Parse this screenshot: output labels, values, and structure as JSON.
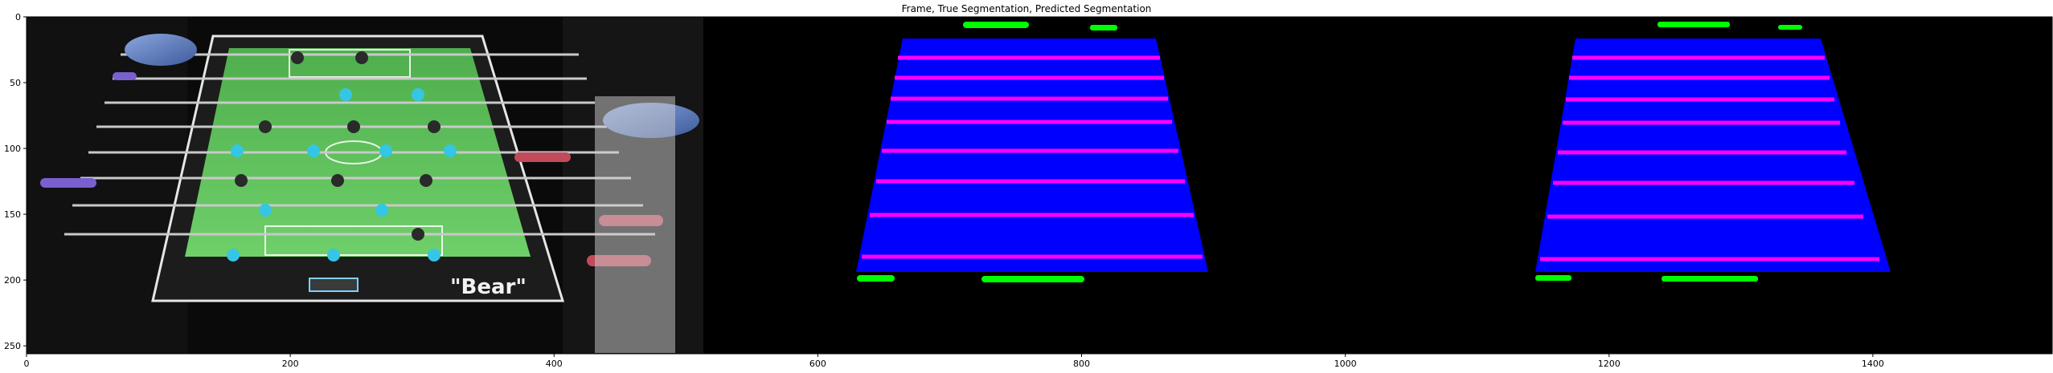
{
  "figure": {
    "title": "Frame, True Segmentation, Predicted Segmentation"
  },
  "axes": {
    "x_ticks": [
      "0",
      "200",
      "400",
      "600",
      "800",
      "1000",
      "1200",
      "1400"
    ],
    "y_ticks": [
      "0",
      "50",
      "100",
      "150",
      "200",
      "250"
    ],
    "x_tick_values": [
      0,
      200,
      400,
      600,
      800,
      1000,
      1200,
      1400
    ],
    "y_tick_values": [
      0,
      50,
      100,
      150,
      200,
      250
    ],
    "xlim": [
      0,
      1536
    ],
    "ylim": [
      256,
      0
    ]
  },
  "panels": {
    "frame_label": "\"Bear\"",
    "colors": {
      "table_blue": "#0000ff",
      "rod_magenta": "#ff00ff",
      "goal_green": "#00ff00",
      "field_green": "#5fc35a",
      "player_cyan": "#35c6e6",
      "background": "#000000"
    }
  }
}
